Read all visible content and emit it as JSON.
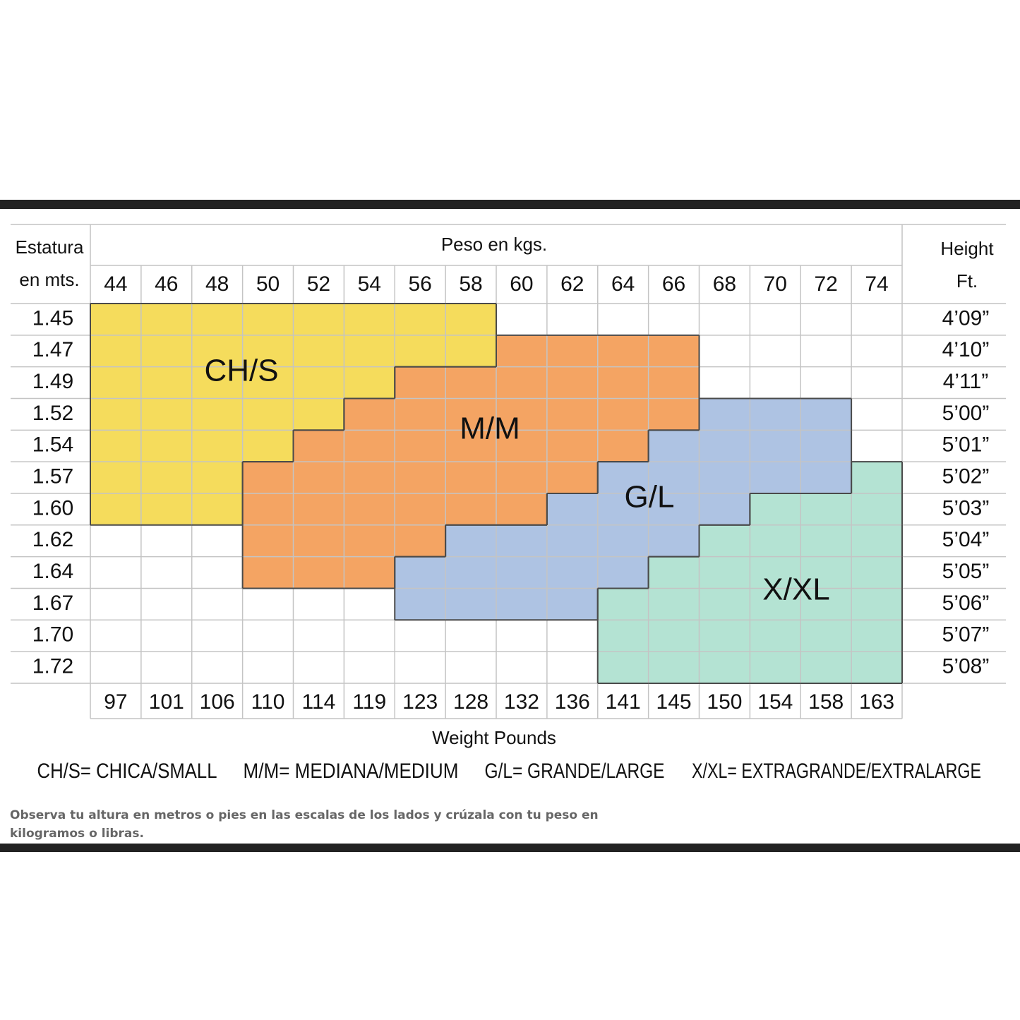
{
  "header": {
    "height_m_title": [
      "Estatura",
      "en mts."
    ],
    "weight_kg_title": "Peso en kgs.",
    "height_ft_title": [
      "Height",
      "Ft."
    ],
    "weight_lb_title": "Weight Pounds"
  },
  "weights_kg": [
    44,
    46,
    48,
    50,
    52,
    54,
    56,
    58,
    60,
    62,
    64,
    66,
    68,
    70,
    72,
    74
  ],
  "weights_lb": [
    97,
    101,
    106,
    110,
    114,
    119,
    123,
    128,
    132,
    136,
    141,
    145,
    150,
    154,
    158,
    163
  ],
  "heights_m": [
    "1.45",
    "1.47",
    "1.49",
    "1.52",
    "1.54",
    "1.57",
    "1.60",
    "1.62",
    "1.64",
    "1.67",
    "1.70",
    "1.72"
  ],
  "heights_ft": [
    "4’09”",
    "4’10”",
    "4’11”",
    "5’00”",
    "5’01”",
    "5’02”",
    "5’03”",
    "5’04”",
    "5’05”",
    "5’06”",
    "5’07”",
    "5’08”"
  ],
  "sizes": [
    {
      "label": "CH/S",
      "color": "#f5dc5c",
      "rows": [
        [
          44,
          58
        ],
        [
          44,
          58
        ],
        [
          44,
          54
        ],
        [
          44,
          52
        ],
        [
          44,
          50
        ],
        [
          44,
          48
        ],
        [
          44,
          48
        ],
        null,
        null,
        null,
        null,
        null
      ]
    },
    {
      "label": "M/M",
      "color": "#f4a463",
      "rows": [
        null,
        [
          60,
          66
        ],
        [
          56,
          66
        ],
        [
          54,
          66
        ],
        [
          52,
          64
        ],
        [
          50,
          62
        ],
        [
          50,
          60
        ],
        [
          50,
          56
        ],
        [
          50,
          54
        ],
        null,
        null,
        null
      ]
    },
    {
      "label": "G/L",
      "color": "#aec3e3",
      "rows": [
        null,
        null,
        null,
        [
          68,
          72
        ],
        [
          66,
          72
        ],
        [
          64,
          72
        ],
        [
          62,
          68
        ],
        [
          58,
          66
        ],
        [
          56,
          64
        ],
        [
          56,
          62
        ],
        null,
        null
      ]
    },
    {
      "label": "X/XL",
      "color": "#b4e3d3",
      "rows": [
        null,
        null,
        null,
        null,
        null,
        [
          74,
          74
        ],
        [
          70,
          74
        ],
        [
          68,
          74
        ],
        [
          66,
          74
        ],
        [
          64,
          74
        ],
        [
          64,
          74
        ],
        [
          64,
          74
        ]
      ]
    }
  ],
  "legend": [
    "CH/S= CHICA/SMALL",
    "M/M= MEDIANA/MEDIUM",
    "G/L= GRANDE/LARGE",
    "X/XL= EXTRAGRANDE/EXTRALARGE"
  ],
  "note": "Observa tu altura en metros o pies en las escalas de los lados y crúzala con tu peso en kilogramos o libras."
}
